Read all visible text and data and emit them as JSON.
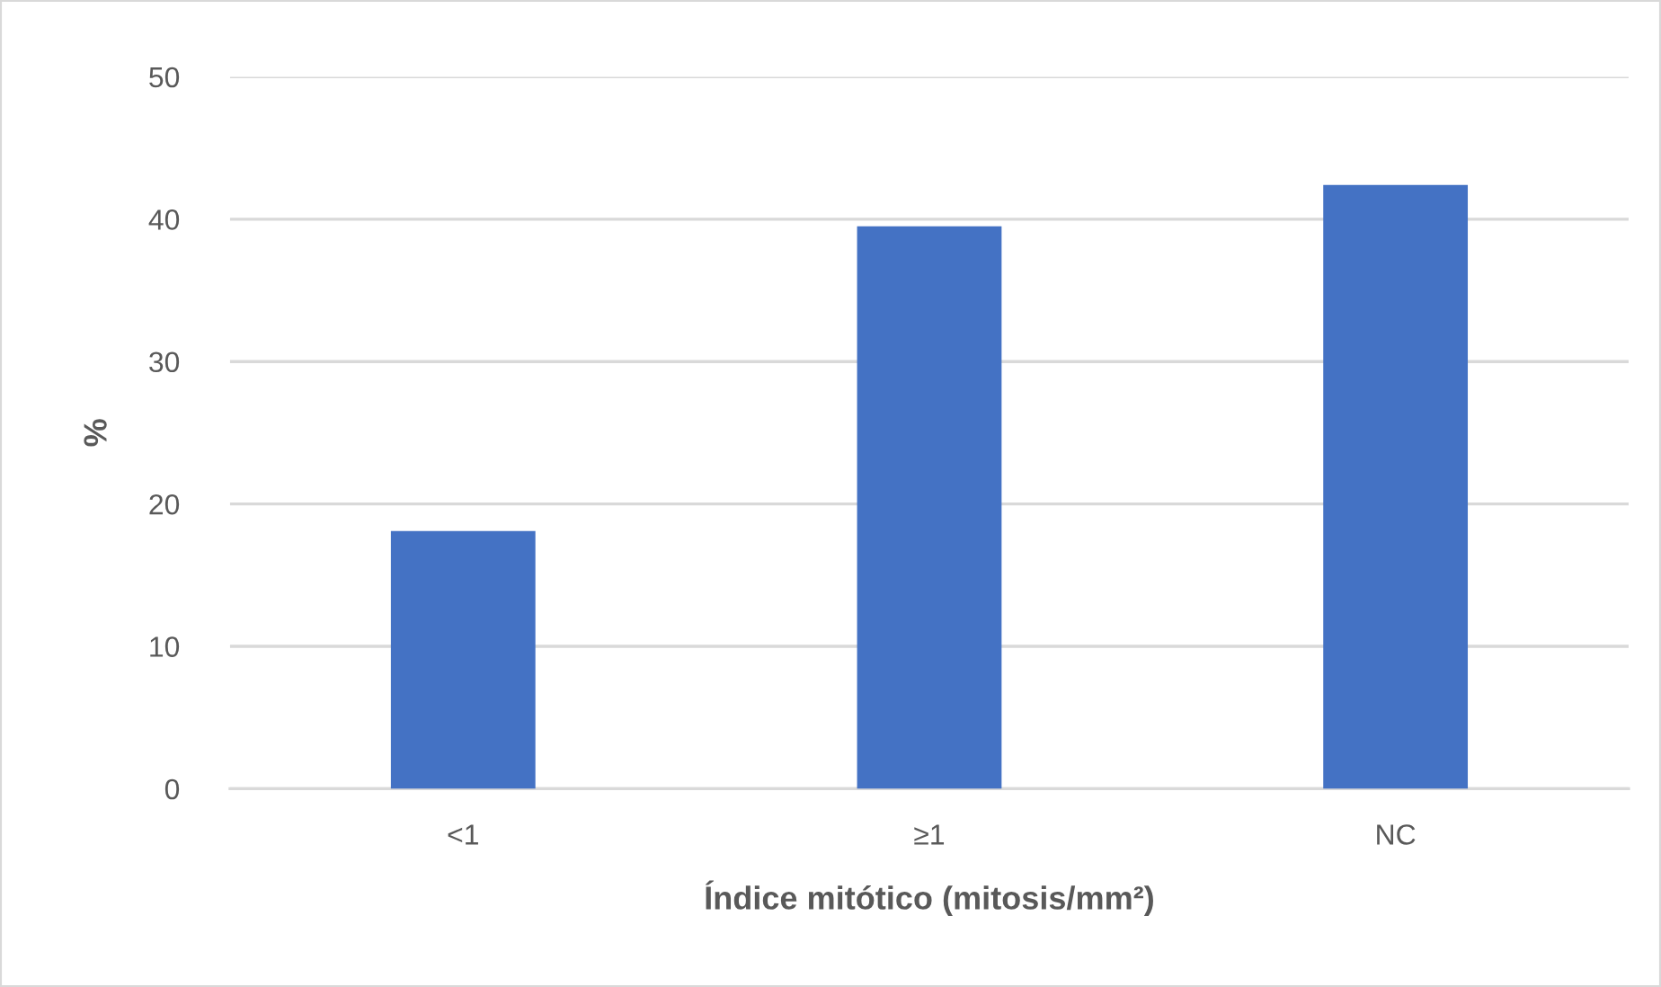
{
  "chart_data": {
    "type": "bar",
    "xlabel": "Índice mitótico (mitosis/mm²)",
    "ylabel": "%",
    "categories": [
      "<1",
      "≥1",
      "NC"
    ],
    "values": [
      18.1,
      39.5,
      42.4
    ],
    "color": "#4472c4",
    "ylim": [
      0,
      50
    ],
    "yticks": [
      0,
      10,
      20,
      30,
      40,
      50
    ],
    "grid": "y",
    "legend": false
  }
}
